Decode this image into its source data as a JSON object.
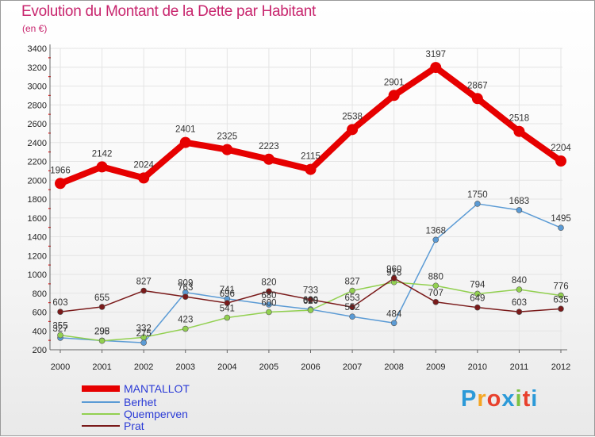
{
  "title": "Evolution du Montant de la Dette par Habitant",
  "subtitle": "(en €)",
  "logo": {
    "text": "Proxiti",
    "letters": [
      "P",
      "r",
      "o",
      "x",
      "i",
      "t",
      "i"
    ],
    "colors": [
      "#2c9ad8",
      "#f5a623",
      "#e8412d",
      "#2c9ad8",
      "#7cc242",
      "#e8412d",
      "#2c9ad8"
    ]
  },
  "chart_data": {
    "type": "line",
    "x": [
      "2000",
      "2001",
      "2002",
      "2003",
      "2004",
      "2005",
      "2006",
      "2007",
      "2008",
      "2009",
      "2010",
      "2011",
      "2012"
    ],
    "ylim": [
      200,
      3400
    ],
    "yticks": [
      200,
      400,
      600,
      800,
      1000,
      1200,
      1400,
      1600,
      1800,
      2000,
      2200,
      2400,
      2600,
      2800,
      3000,
      3200,
      3400
    ],
    "grid": true,
    "legend_position": "bottom-left",
    "series": [
      {
        "name": "MANTALLOT",
        "color": "#e60000",
        "width": 8,
        "marker": 7,
        "labelColor": "#333",
        "values": [
          1966,
          2142,
          2024,
          2401,
          2325,
          2223,
          2115,
          2538,
          2901,
          3197,
          2867,
          2518,
          2204
        ]
      },
      {
        "name": "Berhet",
        "color": "#5b9bd5",
        "width": 1.5,
        "marker": 3.5,
        "values": [
          327,
          298,
          275,
          809,
          741,
          680,
          629,
          552,
          484,
          1368,
          1750,
          1683,
          1495
        ]
      },
      {
        "name": "Quemperven",
        "color": "#92d050",
        "width": 1.5,
        "marker": 3.5,
        "values": [
          355,
          295,
          332,
          423,
          541,
          600,
          620,
          827,
          918,
          880,
          794,
          840,
          776
        ]
      },
      {
        "name": "Prat",
        "color": "#7a1a1a",
        "width": 1.5,
        "marker": 3.5,
        "values": [
          603,
          655,
          827,
          763,
          696,
          820,
          733,
          653,
          960,
          707,
          649,
          603,
          635
        ]
      }
    ]
  }
}
